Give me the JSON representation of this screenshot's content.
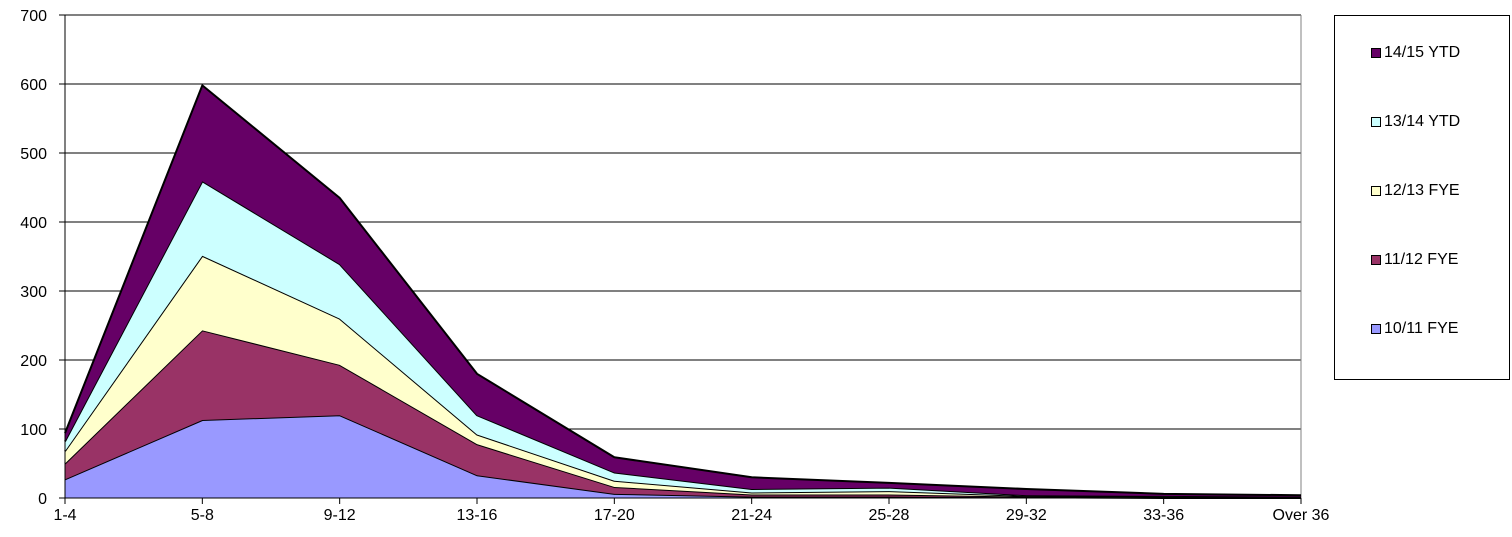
{
  "chart_data": {
    "type": "area",
    "stacked": true,
    "categories": [
      "1-4",
      "5-8",
      "9-12",
      "13-16",
      "17-20",
      "21-24",
      "25-28",
      "29-32",
      "33-36",
      "Over 36"
    ],
    "ylim": [
      0,
      700
    ],
    "yticks": [
      0,
      100,
      200,
      300,
      400,
      500,
      600,
      700
    ],
    "grid": true,
    "legend_position": "right",
    "series": [
      {
        "name": "10/11 FYE",
        "color": "#9999ff",
        "values": [
          27,
          113,
          120,
          33,
          6,
          2,
          2,
          1,
          0,
          0
        ]
      },
      {
        "name": "11/12 FYE",
        "color": "#993366",
        "values": [
          23,
          130,
          73,
          45,
          10,
          3,
          3,
          1,
          1,
          0
        ]
      },
      {
        "name": "12/13 FYE",
        "color": "#ffffcc",
        "values": [
          18,
          108,
          67,
          14,
          9,
          3,
          5,
          1,
          1,
          1
        ]
      },
      {
        "name": "13/14 YTD",
        "color": "#ccffff",
        "values": [
          14,
          108,
          79,
          28,
          12,
          5,
          5,
          1,
          1,
          1
        ]
      },
      {
        "name": "14/15 YTD",
        "color": "#660066",
        "values": [
          12,
          139,
          96,
          60,
          22,
          17,
          7,
          9,
          3,
          2
        ]
      }
    ]
  }
}
